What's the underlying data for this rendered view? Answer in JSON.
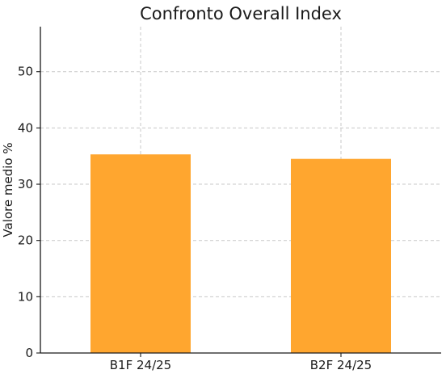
{
  "chart_data": {
    "type": "bar",
    "title": "Confronto Overall Index",
    "xlabel": "",
    "ylabel": "Valore medio %",
    "categories": [
      "B1F 24/25",
      "B2F 24/25"
    ],
    "values": [
      35.3,
      34.5
    ],
    "ylim": [
      0,
      58
    ],
    "yticks": [
      0,
      10,
      20,
      30,
      40,
      50
    ],
    "grid": true,
    "bar_color": "#FFA62F"
  }
}
